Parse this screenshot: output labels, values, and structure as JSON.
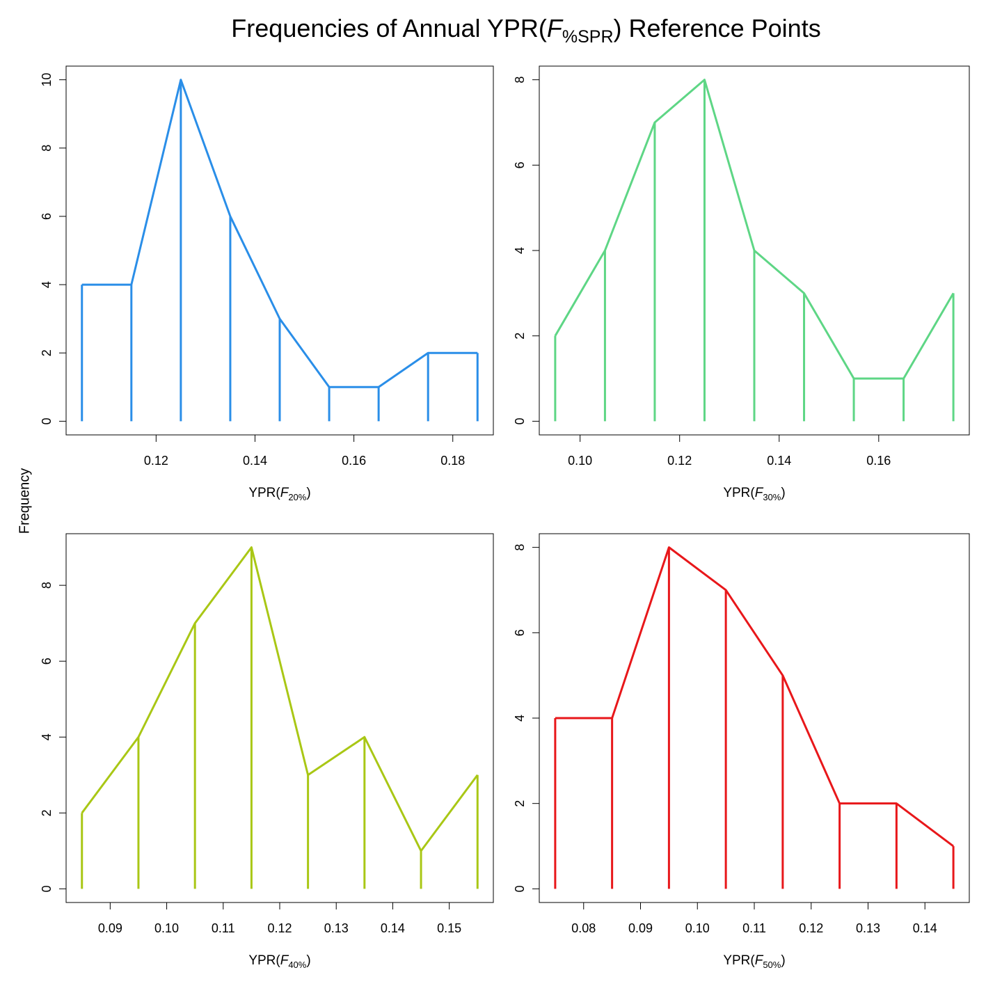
{
  "figure": {
    "title_pre": "Frequencies of Annual YPR(",
    "title_f": "F",
    "title_sub": "%SPR",
    "title_post": ") Reference Points",
    "ylabel": "Frequency"
  },
  "chart_data": [
    {
      "type": "line",
      "style": "histogram-stems-with-frequency-polygon",
      "color": "#2a8ee8",
      "xlabel_pre": "YPR(",
      "xlabel_f": "F",
      "xlabel_sub": "20%",
      "xlabel_post": ")",
      "x": [
        0.105,
        0.115,
        0.125,
        0.135,
        0.145,
        0.155,
        0.165,
        0.175,
        0.185
      ],
      "y": [
        4,
        4,
        10,
        6,
        3,
        1,
        1,
        2,
        2
      ],
      "xlim": [
        0.1018,
        0.1882
      ],
      "ylim": [
        -0.4,
        10.4
      ],
      "xticks": [
        0.12,
        0.14,
        0.16,
        0.18
      ],
      "xtick_labels": [
        "0.12",
        "0.14",
        "0.16",
        "0.18"
      ],
      "yticks": [
        0,
        2,
        4,
        6,
        8,
        10
      ],
      "ytick_labels": [
        "0",
        "2",
        "4",
        "6",
        "8",
        "10"
      ]
    },
    {
      "type": "line",
      "style": "histogram-stems-with-frequency-polygon",
      "color": "#5ed685",
      "xlabel_pre": "YPR(",
      "xlabel_f": "F",
      "xlabel_sub": "30%",
      "xlabel_post": ")",
      "x": [
        0.095,
        0.105,
        0.115,
        0.125,
        0.135,
        0.145,
        0.155,
        0.165,
        0.175
      ],
      "y": [
        2,
        4,
        7,
        8,
        4,
        3,
        1,
        1,
        3
      ],
      "xlim": [
        0.0918,
        0.1782
      ],
      "ylim": [
        -0.32,
        8.32
      ],
      "xticks": [
        0.1,
        0.12,
        0.14,
        0.16
      ],
      "xtick_labels": [
        "0.10",
        "0.12",
        "0.14",
        "0.16"
      ],
      "yticks": [
        0,
        2,
        4,
        6,
        8
      ],
      "ytick_labels": [
        "0",
        "2",
        "4",
        "6",
        "8"
      ]
    },
    {
      "type": "line",
      "style": "histogram-stems-with-frequency-polygon",
      "color": "#a9c715",
      "xlabel_pre": "YPR(",
      "xlabel_f": "F",
      "xlabel_sub": "40%",
      "xlabel_post": ")",
      "x": [
        0.085,
        0.095,
        0.105,
        0.115,
        0.125,
        0.135,
        0.145,
        0.155
      ],
      "y": [
        2,
        4,
        7,
        9,
        3,
        4,
        1,
        3
      ],
      "xlim": [
        0.0822,
        0.1578
      ],
      "ylim": [
        -0.36,
        9.36
      ],
      "xticks": [
        0.09,
        0.1,
        0.11,
        0.12,
        0.13,
        0.14,
        0.15
      ],
      "xtick_labels": [
        "0.09",
        "0.10",
        "0.11",
        "0.12",
        "0.13",
        "0.14",
        "0.15"
      ],
      "yticks": [
        0,
        2,
        4,
        6,
        8
      ],
      "ytick_labels": [
        "0",
        "2",
        "4",
        "6",
        "8"
      ]
    },
    {
      "type": "line",
      "style": "histogram-stems-with-frequency-polygon",
      "color": "#e8171a",
      "xlabel_pre": "YPR(",
      "xlabel_f": "F",
      "xlabel_sub": "50%",
      "xlabel_post": ")",
      "x": [
        0.075,
        0.085,
        0.095,
        0.105,
        0.115,
        0.125,
        0.135,
        0.145
      ],
      "y": [
        4,
        4,
        8,
        7,
        5,
        2,
        2,
        1
      ],
      "xlim": [
        0.0722,
        0.1478
      ],
      "ylim": [
        -0.32,
        8.32
      ],
      "xticks": [
        0.08,
        0.09,
        0.1,
        0.11,
        0.12,
        0.13,
        0.14
      ],
      "xtick_labels": [
        "0.08",
        "0.09",
        "0.10",
        "0.11",
        "0.12",
        "0.13",
        "0.14"
      ],
      "yticks": [
        0,
        2,
        4,
        6,
        8
      ],
      "ytick_labels": [
        "0",
        "2",
        "4",
        "6",
        "8"
      ]
    }
  ]
}
